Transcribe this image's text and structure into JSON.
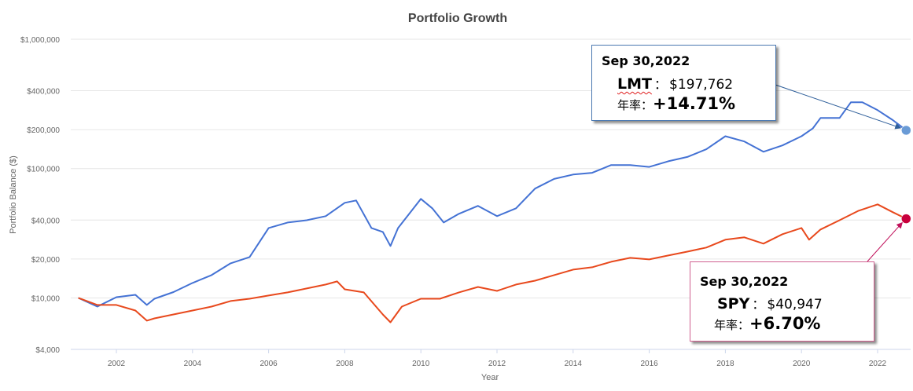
{
  "chart_data": {
    "type": "line",
    "title": "Portfolio Growth",
    "xlabel": "Year",
    "ylabel": "Portfolio Balance ($)",
    "yscale": "log",
    "ylim": [
      4000,
      1000000
    ],
    "xlim": [
      2001.0,
      2022.75
    ],
    "grid": true,
    "yticks": [
      1000000,
      400000,
      200000,
      100000,
      40000,
      20000,
      10000,
      4000
    ],
    "ytick_labels": [
      "$1,000,000",
      "$400,000",
      "$200,000",
      "$100,000",
      "$40,000",
      "$20,000",
      "$10,000",
      "$4,000"
    ],
    "xticks": [
      2002,
      2004,
      2006,
      2008,
      2010,
      2012,
      2014,
      2016,
      2018,
      2020,
      2022
    ],
    "xtick_labels": [
      "2002",
      "2004",
      "2006",
      "2008",
      "2010",
      "2012",
      "2014",
      "2016",
      "2018",
      "2020",
      "2022"
    ],
    "series": [
      {
        "name": "LMT",
        "color": "#4472d4",
        "marker_color": "#6a9bd6",
        "x": [
          2001.0,
          2001.5,
          2002.0,
          2002.5,
          2002.8,
          2003.0,
          2003.5,
          2004.0,
          2004.5,
          2005.0,
          2005.5,
          2006.0,
          2006.5,
          2007.0,
          2007.5,
          2008.0,
          2008.3,
          2008.7,
          2009.0,
          2009.2,
          2009.4,
          2010.0,
          2010.3,
          2010.6,
          2011.0,
          2011.5,
          2012.0,
          2012.5,
          2013.0,
          2013.5,
          2014.0,
          2014.5,
          2015.0,
          2015.5,
          2016.0,
          2016.5,
          2017.0,
          2017.5,
          2018.0,
          2018.5,
          2019.0,
          2019.5,
          2020.0,
          2020.3,
          2020.5,
          2021.0,
          2021.3,
          2021.6,
          2022.0,
          2022.4,
          2022.75
        ],
        "values": [
          10000,
          8570,
          10140,
          10570,
          8820,
          9860,
          11100,
          13050,
          15000,
          18500,
          20700,
          34700,
          38300,
          39900,
          42900,
          54400,
          56700,
          34700,
          32400,
          25200,
          34700,
          58300,
          49300,
          38300,
          44700,
          51500,
          42900,
          49300,
          70000,
          83200,
          90000,
          92700,
          106500,
          106500,
          103000,
          114000,
          123000,
          141000,
          178000,
          162000,
          135000,
          151000,
          178000,
          205000,
          246000,
          246000,
          326000,
          326000,
          283000,
          237000,
          197762
        ]
      },
      {
        "name": "SPY",
        "color": "#e8491d",
        "marker_color": "#c8003c",
        "x": [
          2001.0,
          2001.5,
          2002.0,
          2002.5,
          2002.8,
          2003.0,
          2003.5,
          2004.0,
          2004.5,
          2005.0,
          2005.5,
          2006.0,
          2006.5,
          2007.0,
          2007.5,
          2007.8,
          2008.0,
          2008.5,
          2009.0,
          2009.2,
          2009.5,
          2010.0,
          2010.5,
          2011.0,
          2011.5,
          2012.0,
          2012.5,
          2013.0,
          2013.5,
          2014.0,
          2014.5,
          2015.0,
          2015.5,
          2016.0,
          2016.5,
          2017.0,
          2017.5,
          2018.0,
          2018.5,
          2019.0,
          2019.5,
          2020.0,
          2020.2,
          2020.5,
          2021.0,
          2021.5,
          2022.0,
          2022.4,
          2022.75
        ],
        "values": [
          10000,
          8820,
          8820,
          7990,
          6670,
          6950,
          7450,
          7990,
          8570,
          9460,
          9860,
          10430,
          11030,
          11830,
          12690,
          13420,
          11660,
          11030,
          7450,
          6480,
          8570,
          9860,
          9860,
          11030,
          12160,
          11340,
          12690,
          13600,
          15000,
          16550,
          17270,
          19040,
          20400,
          19850,
          21300,
          22800,
          24500,
          28200,
          29400,
          26300,
          31100,
          34700,
          28200,
          33800,
          39900,
          47200,
          52900,
          46000,
          40947
        ]
      }
    ],
    "annotations": [
      {
        "date": "Sep 30,2022",
        "ticker": "LMT",
        "sep": "：",
        "value": "$197,762",
        "rate_label": "年率：",
        "rate": "+14.71%"
      },
      {
        "date": "Sep 30,2022",
        "ticker": "SPY",
        "sep": "：",
        "value": "$40,947",
        "rate_label": "年率：",
        "rate": "+6.70%"
      }
    ]
  }
}
